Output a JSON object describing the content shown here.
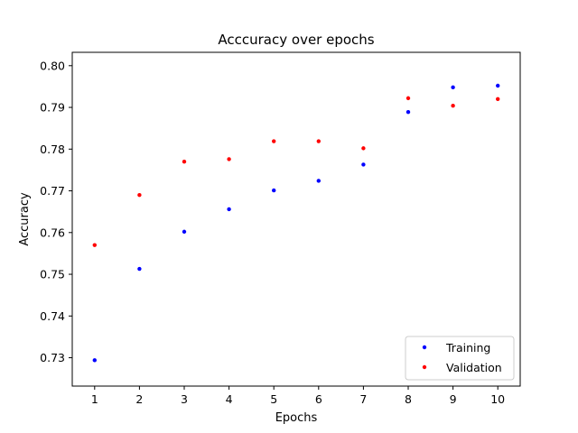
{
  "chart_data": {
    "type": "scatter",
    "title": "Acccuracy over epochs",
    "xlabel": "Epochs",
    "ylabel": "Accuracy",
    "x": [
      1,
      2,
      3,
      4,
      5,
      6,
      7,
      8,
      9,
      10
    ],
    "xticks": [
      "1",
      "2",
      "3",
      "4",
      "5",
      "6",
      "7",
      "8",
      "9",
      "10"
    ],
    "yticks": [
      "0.73",
      "0.74",
      "0.75",
      "0.76",
      "0.77",
      "0.78",
      "0.79",
      "0.80"
    ],
    "xlim": [
      0.5,
      10.5
    ],
    "ylim": [
      0.7232,
      0.8032
    ],
    "grid": false,
    "legend_position": "lower-right",
    "series": [
      {
        "name": "Training",
        "color": "#0000ff",
        "values": [
          0.7294,
          0.7513,
          0.7602,
          0.7656,
          0.7701,
          0.7724,
          0.7763,
          0.7889,
          0.7948,
          0.7952
        ]
      },
      {
        "name": "Validation",
        "color": "#ff0000",
        "values": [
          0.757,
          0.769,
          0.777,
          0.7776,
          0.7819,
          0.7819,
          0.7802,
          0.7922,
          0.7904,
          0.792
        ]
      }
    ]
  }
}
